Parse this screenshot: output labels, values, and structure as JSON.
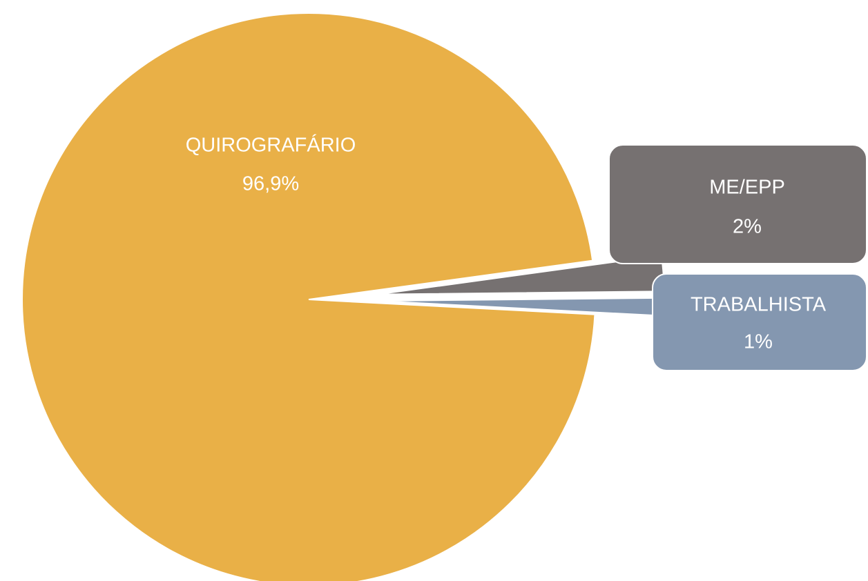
{
  "chart_data": {
    "type": "pie",
    "categories": [
      "QUIROGRAFÁRIO",
      "ME/EPP",
      "TRABALHISTA"
    ],
    "values": [
      96.9,
      2,
      1
    ],
    "value_labels": [
      "96,9%",
      "2%",
      "1%"
    ],
    "colors": [
      "#e9b047",
      "#767171",
      "#8497b0"
    ]
  }
}
